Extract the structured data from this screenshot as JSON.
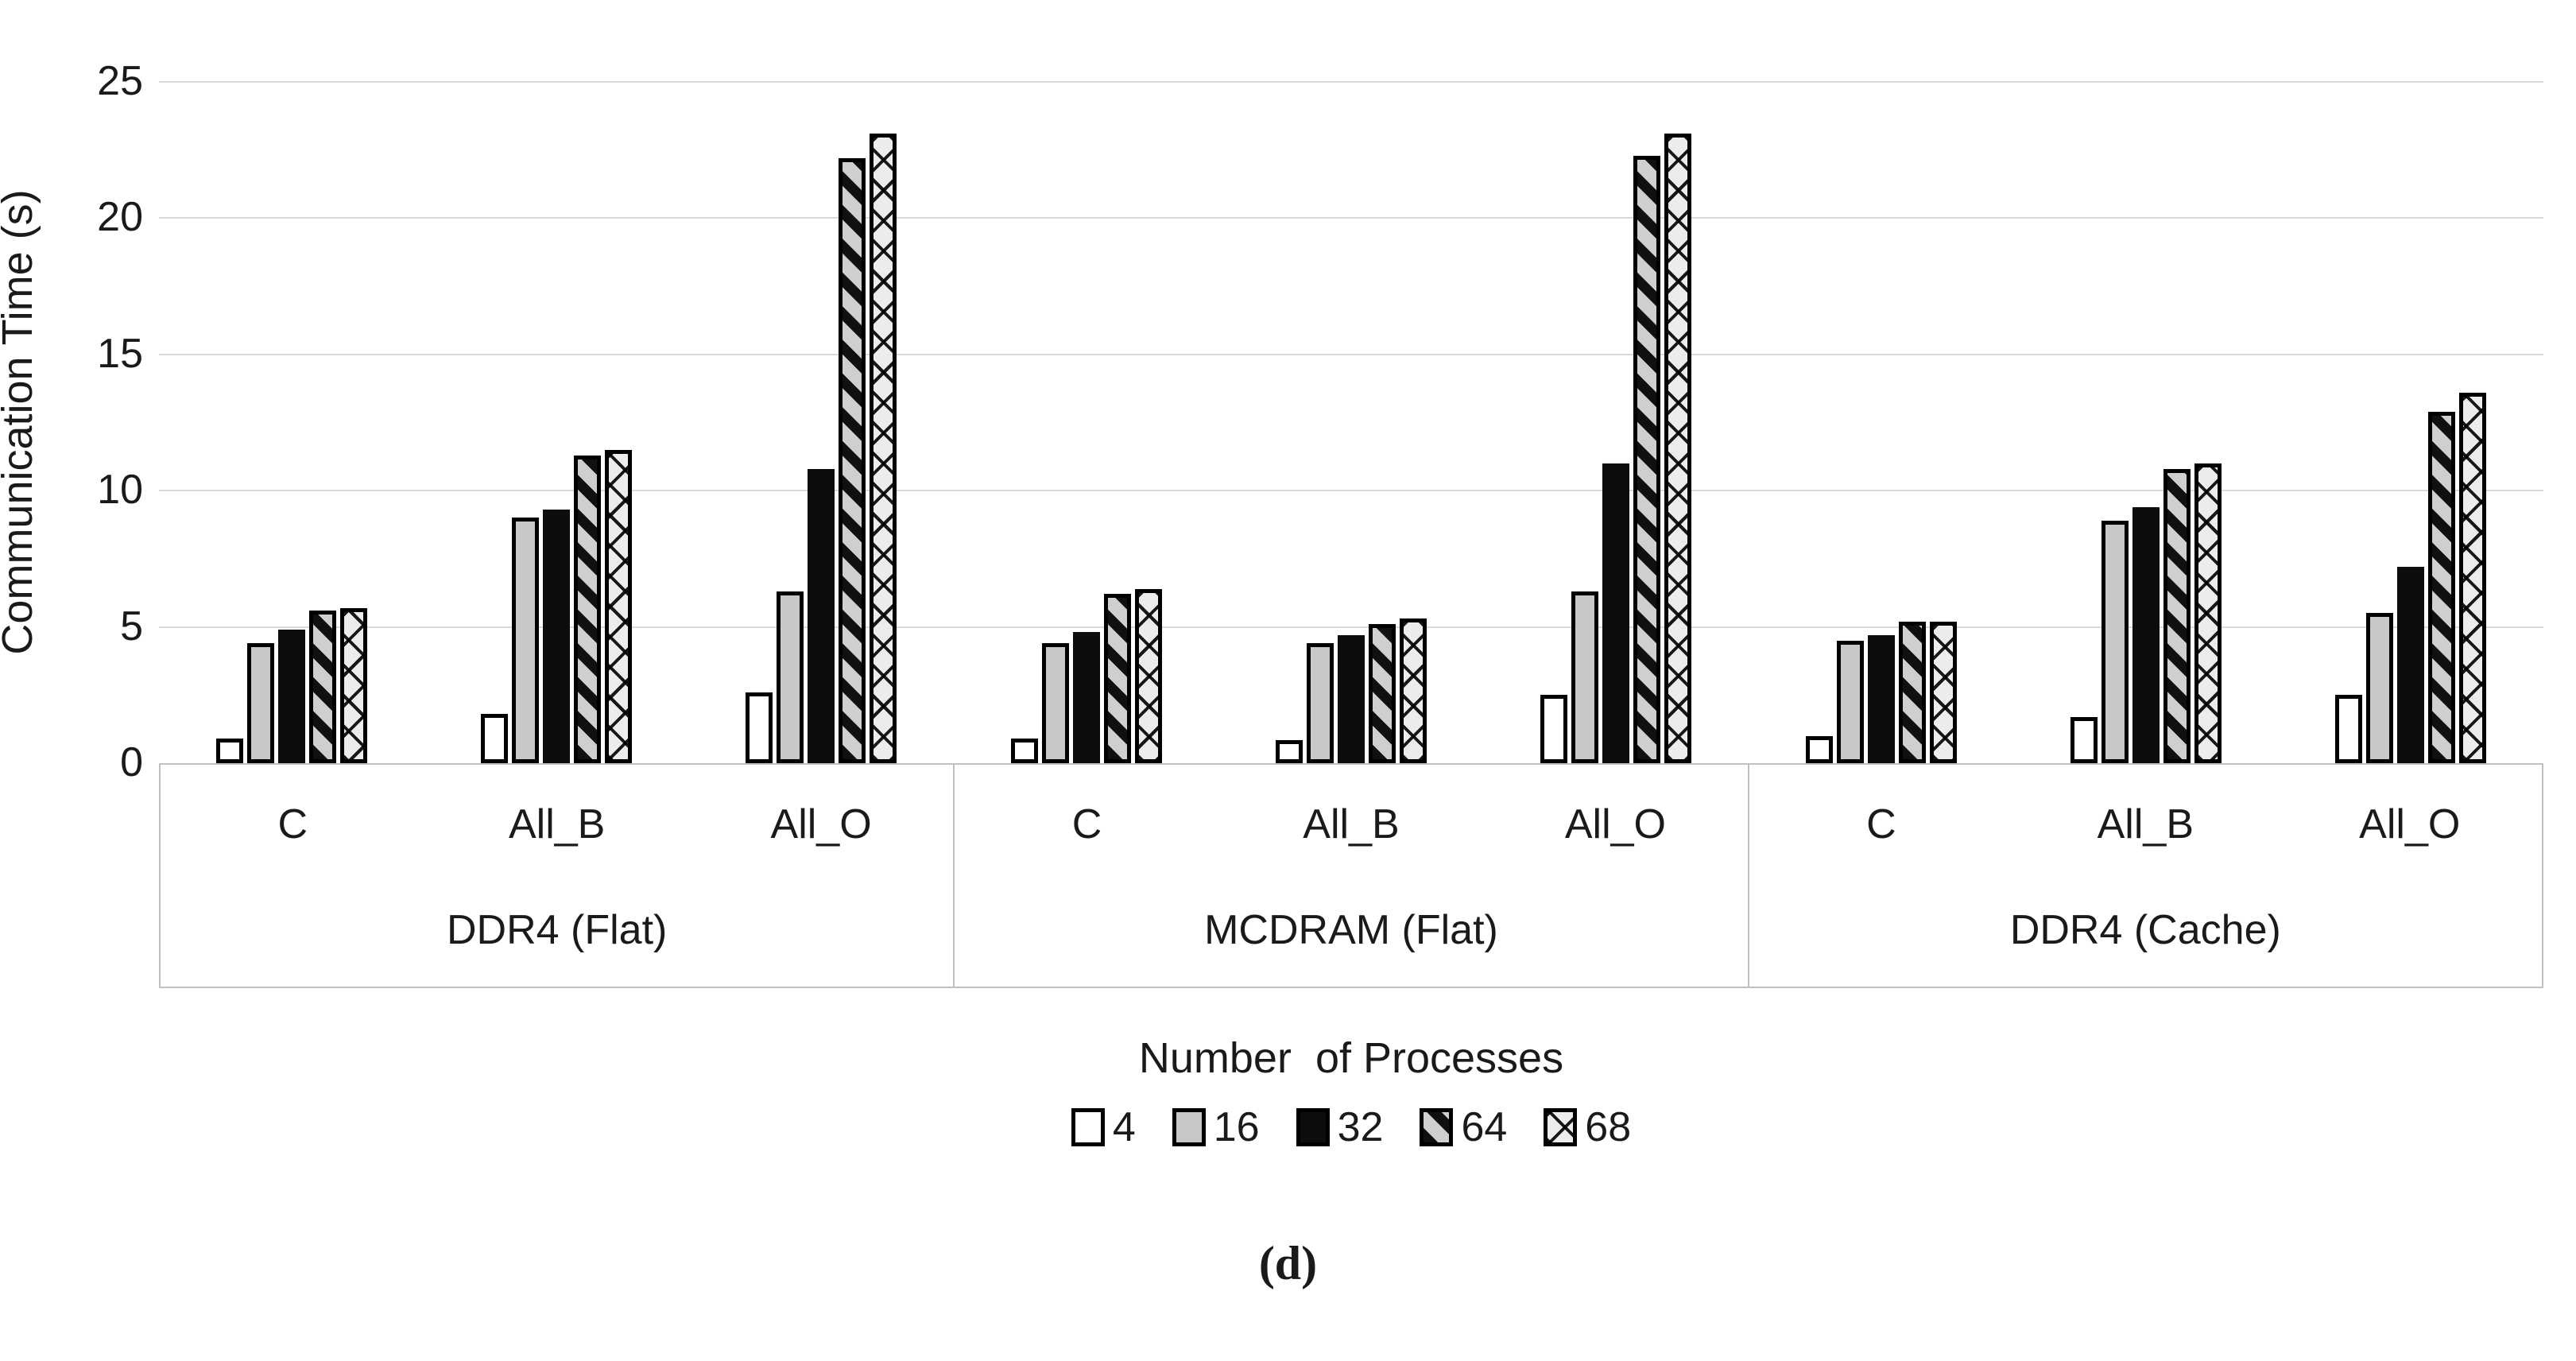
{
  "colors": {
    "bar_gray": "#c8c8c8",
    "bar_black": "#0d0d0d",
    "gridline": "#d9d9d9",
    "axis_box_border": "#bfbfbf",
    "text": "#1a1a1a"
  },
  "caption": "(d)",
  "chart_data": {
    "type": "bar",
    "title": "",
    "ylabel": "Communication Time (s)",
    "xlabel": "",
    "ylim": [
      0,
      25
    ],
    "yticks": [
      0,
      5,
      10,
      15,
      20,
      25
    ],
    "grid": "horizontal",
    "legend_position": "bottom",
    "legend_title": "Number  of Processes",
    "series": [
      {
        "name": "4",
        "pattern": "white"
      },
      {
        "name": "16",
        "pattern": "gray"
      },
      {
        "name": "32",
        "pattern": "black"
      },
      {
        "name": "64",
        "pattern": "diag"
      },
      {
        "name": "68",
        "pattern": "cross"
      }
    ],
    "groups": [
      {
        "label": "DDR4 (Flat)",
        "clusters": [
          {
            "category": "C",
            "values": [
              0.9,
              4.4,
              4.9,
              5.6,
              5.7
            ]
          },
          {
            "category": "All_B",
            "values": [
              1.8,
              9.0,
              9.3,
              11.3,
              11.5
            ]
          },
          {
            "category": "All_O",
            "values": [
              2.6,
              6.3,
              10.8,
              22.2,
              23.1
            ]
          }
        ]
      },
      {
        "label": "MCDRAM (Flat)",
        "clusters": [
          {
            "category": "C",
            "values": [
              0.9,
              4.4,
              4.8,
              6.2,
              6.4
            ]
          },
          {
            "category": "All_B",
            "values": [
              0.85,
              4.4,
              4.7,
              5.1,
              5.3
            ]
          },
          {
            "category": "All_O",
            "values": [
              2.5,
              6.3,
              11.0,
              22.3,
              23.1
            ]
          }
        ]
      },
      {
        "label": "DDR4 (Cache)",
        "clusters": [
          {
            "category": "C",
            "values": [
              1.0,
              4.5,
              4.7,
              5.2,
              5.2
            ]
          },
          {
            "category": "All_B",
            "values": [
              1.7,
              8.9,
              9.4,
              10.8,
              11.0
            ]
          },
          {
            "category": "All_O",
            "values": [
              2.5,
              5.5,
              7.2,
              12.9,
              13.6
            ]
          }
        ]
      }
    ]
  }
}
